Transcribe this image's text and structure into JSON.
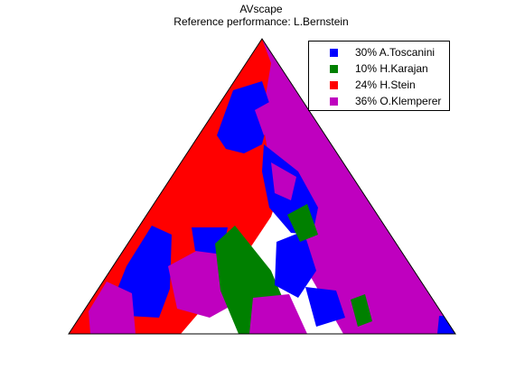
{
  "chart_data": {
    "type": "ternary_map",
    "title": "AVscape",
    "subtitle": "Reference performance: L.Bernstein",
    "legend": [
      {
        "name": "A.Toscanini",
        "percent": 30,
        "color": "#0000ff",
        "label": "30% A.Toscanini"
      },
      {
        "name": "H.Karajan",
        "percent": 10,
        "color": "#008000",
        "label": "10% H.Karajan"
      },
      {
        "name": "H.Stein",
        "percent": 24,
        "color": "#ff0000",
        "label": "24% H.Stein"
      },
      {
        "name": "O.Klemperer",
        "percent": 36,
        "color": "#bf00bf",
        "label": "36% O.Klemperer"
      }
    ],
    "legend_position": "top-right",
    "grid": false
  }
}
